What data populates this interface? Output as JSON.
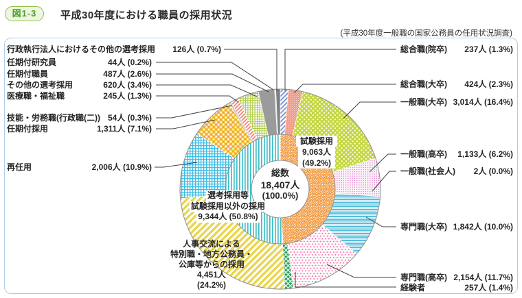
{
  "header": {
    "figure_no": "図1-3",
    "title": "平成30年度における職員の採用状況",
    "note": "(平成30年度一般職の国家公務員の任用状況調査)"
  },
  "colors": {
    "badge_green": "#4e9e2f",
    "frame_blue": "#aecce8",
    "leader_line": "#404040"
  },
  "chart_data": {
    "type": "pie",
    "title": "平成30年度における職員の採用状況",
    "legend_position": "callout-labels",
    "total": {
      "label": "総数",
      "people": "18,407人",
      "pct": "(100.0%)"
    },
    "inner_ring": [
      {
        "label": "試験採用",
        "people": "9,063人",
        "pct": "(49.2%)",
        "value": 49.2,
        "fill": "orange-speckle"
      },
      {
        "label_line1": "選考採用等",
        "label_line2": "試験採用以外の採用",
        "people": "9,344人 (50.8%)",
        "value": 50.8,
        "fill": "teal-stripes"
      }
    ],
    "slices": [
      {
        "label": "総合職(院卒)",
        "people": "237人",
        "pct": "(1.3%)",
        "value": 1.3,
        "fill": "blue-diag"
      },
      {
        "label": "総合職(大卒)",
        "people": "424人",
        "pct": "(2.3%)",
        "value": 2.3,
        "fill": "salmon-dot"
      },
      {
        "label": "一般職(大卒)",
        "people": "3,014人",
        "pct": "(16.4%)",
        "value": 16.4,
        "fill": "lime-checker"
      },
      {
        "label": "一般職(高卒)",
        "people": "1,133人",
        "pct": "(6.2%)",
        "value": 6.2,
        "fill": "pink-sqdot"
      },
      {
        "label": "一般職(社会人)",
        "people": "2人",
        "pct": "(0.0%)",
        "value": 0.0,
        "fill": "#ffffff"
      },
      {
        "label": "専門職(大卒)",
        "people": "1,842人",
        "pct": "(10.0%)",
        "value": 10.0,
        "fill": "cyan-hline"
      },
      {
        "label": "専門職(高卒)",
        "people": "2,154人",
        "pct": "(11.7%)",
        "value": 11.7,
        "fill": "pink-dot2"
      },
      {
        "label": "経験者",
        "people": "257人",
        "pct": "(1.4%)",
        "value": 1.4,
        "fill": "green-check"
      },
      {
        "label": "人事交流による特別職・地方公務員・公庫等からの採用",
        "label_lines": [
          "人事交流による",
          "特別職・地方公務員・",
          "公庫等からの採用"
        ],
        "people": "4,451人",
        "pct": "(24.2%)",
        "value": 24.2,
        "fill": "yellow-diag"
      },
      {
        "label": "再任用",
        "people": "2,006人",
        "pct": "(10.9%)",
        "value": 10.9,
        "fill": "cyan-plaid"
      },
      {
        "label": "任期付採用",
        "people": "1,311人",
        "pct": "(7.1%)",
        "value": 7.1,
        "fill": "orange-diamond"
      },
      {
        "label": "技能・労務職(行政職(二))",
        "people": "54人",
        "pct": "(0.3%)",
        "value": 0.3,
        "fill": "#b9c9dd"
      },
      {
        "label": "医療職・福祉職",
        "people": "245人",
        "pct": "(1.3%)",
        "value": 1.3,
        "fill": "salmon-diag"
      },
      {
        "label": "その他の選考採用",
        "people": "620人",
        "pct": "(3.4%)",
        "value": 3.4,
        "fill": "lime-grid"
      },
      {
        "label": "任期付職員",
        "people": "487人",
        "pct": "(2.6%)",
        "value": 2.6,
        "fill": "#9b9b9b"
      },
      {
        "label": "任期付研究員",
        "people": "44人",
        "pct": "(0.2%)",
        "value": 0.2,
        "fill": "#e2e2e2"
      },
      {
        "label": "行政執行法人におけるその他の選考採用",
        "people": "126人",
        "pct": "(0.7%)",
        "value": 0.7,
        "fill": "#7e8083"
      }
    ]
  }
}
